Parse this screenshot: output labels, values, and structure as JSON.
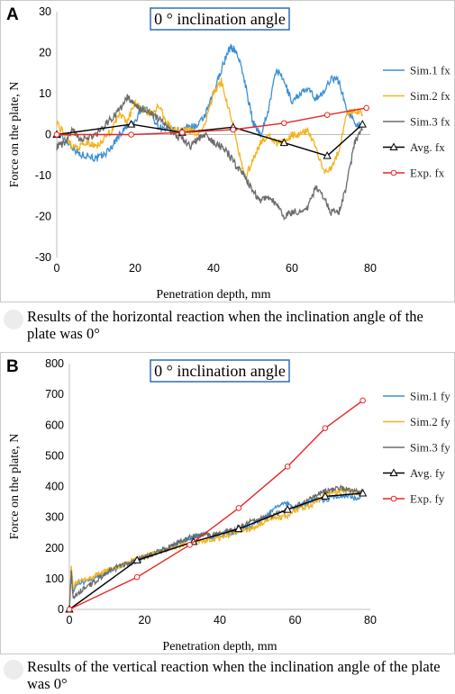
{
  "colors": {
    "sim1": "#3b8fd4",
    "sim2": "#f5b21b",
    "sim3": "#6b6b6b",
    "avg": "#000000",
    "exp": "#e82727",
    "title_border": "#2e6bb8"
  },
  "chart_data": [
    {
      "type": "line",
      "panel_letter": "A",
      "title": "0 ° inclination angle",
      "xlabel": "Penetration depth, mm",
      "ylabel": "Force on the plate, N",
      "xlim": [
        0,
        80
      ],
      "ylim": [
        -30,
        30
      ],
      "xticks": [
        "0",
        "20",
        "40",
        "60",
        "80"
      ],
      "yticks": [
        "-30",
        "-20",
        "-10",
        "0",
        "10",
        "20",
        "30"
      ],
      "grid": false,
      "legend_position": "right",
      "caption": "Results of the horizontal reaction when the inclination angle of the plate was 0°",
      "series": [
        {
          "name": "Sim.1 fx",
          "style": "noisy",
          "x": [
            0,
            2,
            4,
            6,
            8,
            10,
            12,
            14,
            16,
            18,
            20,
            22,
            24,
            26,
            28,
            30,
            32,
            34,
            36,
            38,
            40,
            42,
            44,
            45,
            46,
            48,
            50,
            52,
            54,
            56,
            58,
            60,
            62,
            64,
            66,
            68,
            70,
            72,
            74,
            76,
            78
          ],
          "y": [
            0,
            -1,
            -3,
            -5,
            -5,
            -6,
            -5,
            -3,
            0,
            2,
            3,
            7,
            5,
            2,
            1,
            1,
            1,
            2,
            2,
            5,
            10,
            16,
            21,
            21,
            20,
            13,
            3,
            0,
            6,
            16,
            13,
            8,
            10,
            11,
            9,
            10,
            14,
            13,
            6,
            3,
            2
          ]
        },
        {
          "name": "Sim.2 fx",
          "style": "noisy",
          "x": [
            0,
            2,
            4,
            6,
            8,
            10,
            12,
            14,
            16,
            18,
            20,
            22,
            24,
            26,
            28,
            30,
            32,
            34,
            36,
            38,
            40,
            42,
            44,
            46,
            48,
            50,
            52,
            54,
            56,
            58,
            60,
            62,
            64,
            66,
            68,
            70,
            72,
            74,
            76,
            78
          ],
          "y": [
            3,
            0,
            -3,
            -3,
            -2,
            -3,
            -1,
            1,
            5,
            3,
            8,
            6,
            5,
            7,
            3,
            1,
            1,
            1,
            0,
            3,
            10,
            13,
            6,
            -2,
            -11,
            -6,
            -2,
            0,
            -2,
            -2,
            0,
            0,
            1,
            -3,
            -9,
            -8,
            -4,
            5,
            6,
            5
          ]
        },
        {
          "name": "Sim.3 fx",
          "style": "noisy",
          "x": [
            0,
            2,
            4,
            6,
            8,
            10,
            12,
            14,
            16,
            18,
            20,
            22,
            24,
            26,
            28,
            30,
            32,
            34,
            36,
            38,
            40,
            42,
            44,
            46,
            48,
            50,
            52,
            54,
            56,
            58,
            60,
            62,
            64,
            66,
            68,
            70,
            72,
            74,
            76,
            78
          ],
          "y": [
            -3,
            -2,
            1,
            -1,
            -1,
            0,
            2,
            4,
            6,
            9,
            7,
            6,
            5,
            4,
            2,
            0,
            -1,
            -3,
            -1,
            0,
            -2,
            -3,
            -5,
            -8,
            -10,
            -14,
            -16,
            -15,
            -17,
            -20,
            -19,
            -19,
            -18,
            -13,
            -15,
            -19,
            -19,
            -12,
            -2,
            1
          ]
        },
        {
          "name": "Avg. fx",
          "style": "marker-triangle",
          "x": [
            0,
            19,
            32,
            45,
            58,
            69,
            78
          ],
          "y": [
            0,
            2.5,
            0.5,
            1.8,
            -2,
            -5.2,
            2.5
          ]
        },
        {
          "name": "Exp. fx",
          "style": "marker-circle",
          "x": [
            0,
            19,
            32,
            45,
            58,
            69,
            79
          ],
          "y": [
            0,
            0,
            0.5,
            1.2,
            2.8,
            4.8,
            6.5
          ]
        }
      ]
    },
    {
      "type": "line",
      "panel_letter": "B",
      "title": "0 ° inclination angle",
      "xlabel": "Penetration depth, mm",
      "ylabel": "Force on the plate, N",
      "xlim": [
        0,
        80
      ],
      "ylim": [
        0,
        800
      ],
      "xticks": [
        "0",
        "20",
        "40",
        "60",
        "80"
      ],
      "yticks": [
        "0",
        "100",
        "200",
        "300",
        "400",
        "500",
        "600",
        "700",
        "800"
      ],
      "grid": false,
      "legend_position": "right",
      "caption": "Results of the vertical reaction when the inclination angle of the plate was 0°",
      "series": [
        {
          "name": "Sim.1 fy",
          "style": "noisy",
          "x": [
            0,
            0.5,
            1,
            2,
            4,
            6,
            8,
            10,
            12,
            14,
            16,
            18,
            20,
            22,
            24,
            26,
            28,
            30,
            32,
            34,
            36,
            38,
            40,
            42,
            44,
            46,
            48,
            50,
            52,
            54,
            56,
            58,
            60,
            62,
            64,
            66,
            68,
            70,
            72,
            74,
            76,
            78
          ],
          "y": [
            0,
            130,
            60,
            85,
            90,
            100,
            110,
            120,
            130,
            140,
            150,
            160,
            170,
            180,
            190,
            200,
            210,
            220,
            230,
            240,
            245,
            235,
            240,
            245,
            250,
            260,
            270,
            285,
            300,
            320,
            340,
            345,
            330,
            340,
            350,
            360,
            355,
            365,
            370,
            370,
            360,
            375
          ]
        },
        {
          "name": "Sim.2 fy",
          "style": "noisy",
          "x": [
            0,
            0.5,
            1,
            2,
            4,
            6,
            8,
            10,
            12,
            14,
            16,
            18,
            20,
            22,
            24,
            26,
            28,
            30,
            32,
            34,
            36,
            38,
            40,
            42,
            44,
            46,
            48,
            50,
            52,
            54,
            56,
            58,
            60,
            62,
            64,
            66,
            68,
            70,
            72,
            74,
            76,
            78
          ],
          "y": [
            0,
            145,
            70,
            90,
            95,
            105,
            115,
            125,
            135,
            145,
            155,
            165,
            172,
            180,
            188,
            196,
            205,
            210,
            215,
            220,
            225,
            228,
            232,
            240,
            250,
            255,
            260,
            270,
            285,
            300,
            300,
            300,
            320,
            330,
            335,
            355,
            370,
            380,
            385,
            388,
            380,
            378
          ]
        },
        {
          "name": "Sim.3 fy",
          "style": "noisy",
          "x": [
            0,
            0.5,
            1,
            2,
            4,
            6,
            8,
            10,
            12,
            14,
            16,
            18,
            20,
            22,
            24,
            26,
            28,
            30,
            32,
            34,
            36,
            38,
            40,
            42,
            44,
            46,
            48,
            50,
            52,
            54,
            56,
            58,
            60,
            62,
            64,
            66,
            68,
            70,
            72,
            74,
            76,
            78
          ],
          "y": [
            0,
            120,
            40,
            50,
            70,
            85,
            100,
            120,
            135,
            145,
            150,
            160,
            170,
            180,
            190,
            200,
            210,
            225,
            235,
            240,
            245,
            240,
            248,
            255,
            260,
            270,
            285,
            290,
            300,
            305,
            315,
            325,
            335,
            345,
            360,
            375,
            385,
            390,
            395,
            390,
            385,
            380
          ]
        },
        {
          "name": "Avg. fy",
          "style": "marker-triangle",
          "x": [
            0,
            18,
            33,
            45,
            58,
            68,
            78
          ],
          "y": [
            0,
            160,
            220,
            262,
            325,
            368,
            378
          ]
        },
        {
          "name": "Exp. fy",
          "style": "marker-circle",
          "x": [
            0,
            18,
            32,
            45,
            58,
            68,
            78
          ],
          "y": [
            0,
            105,
            210,
            330,
            465,
            590,
            680
          ]
        }
      ]
    }
  ]
}
